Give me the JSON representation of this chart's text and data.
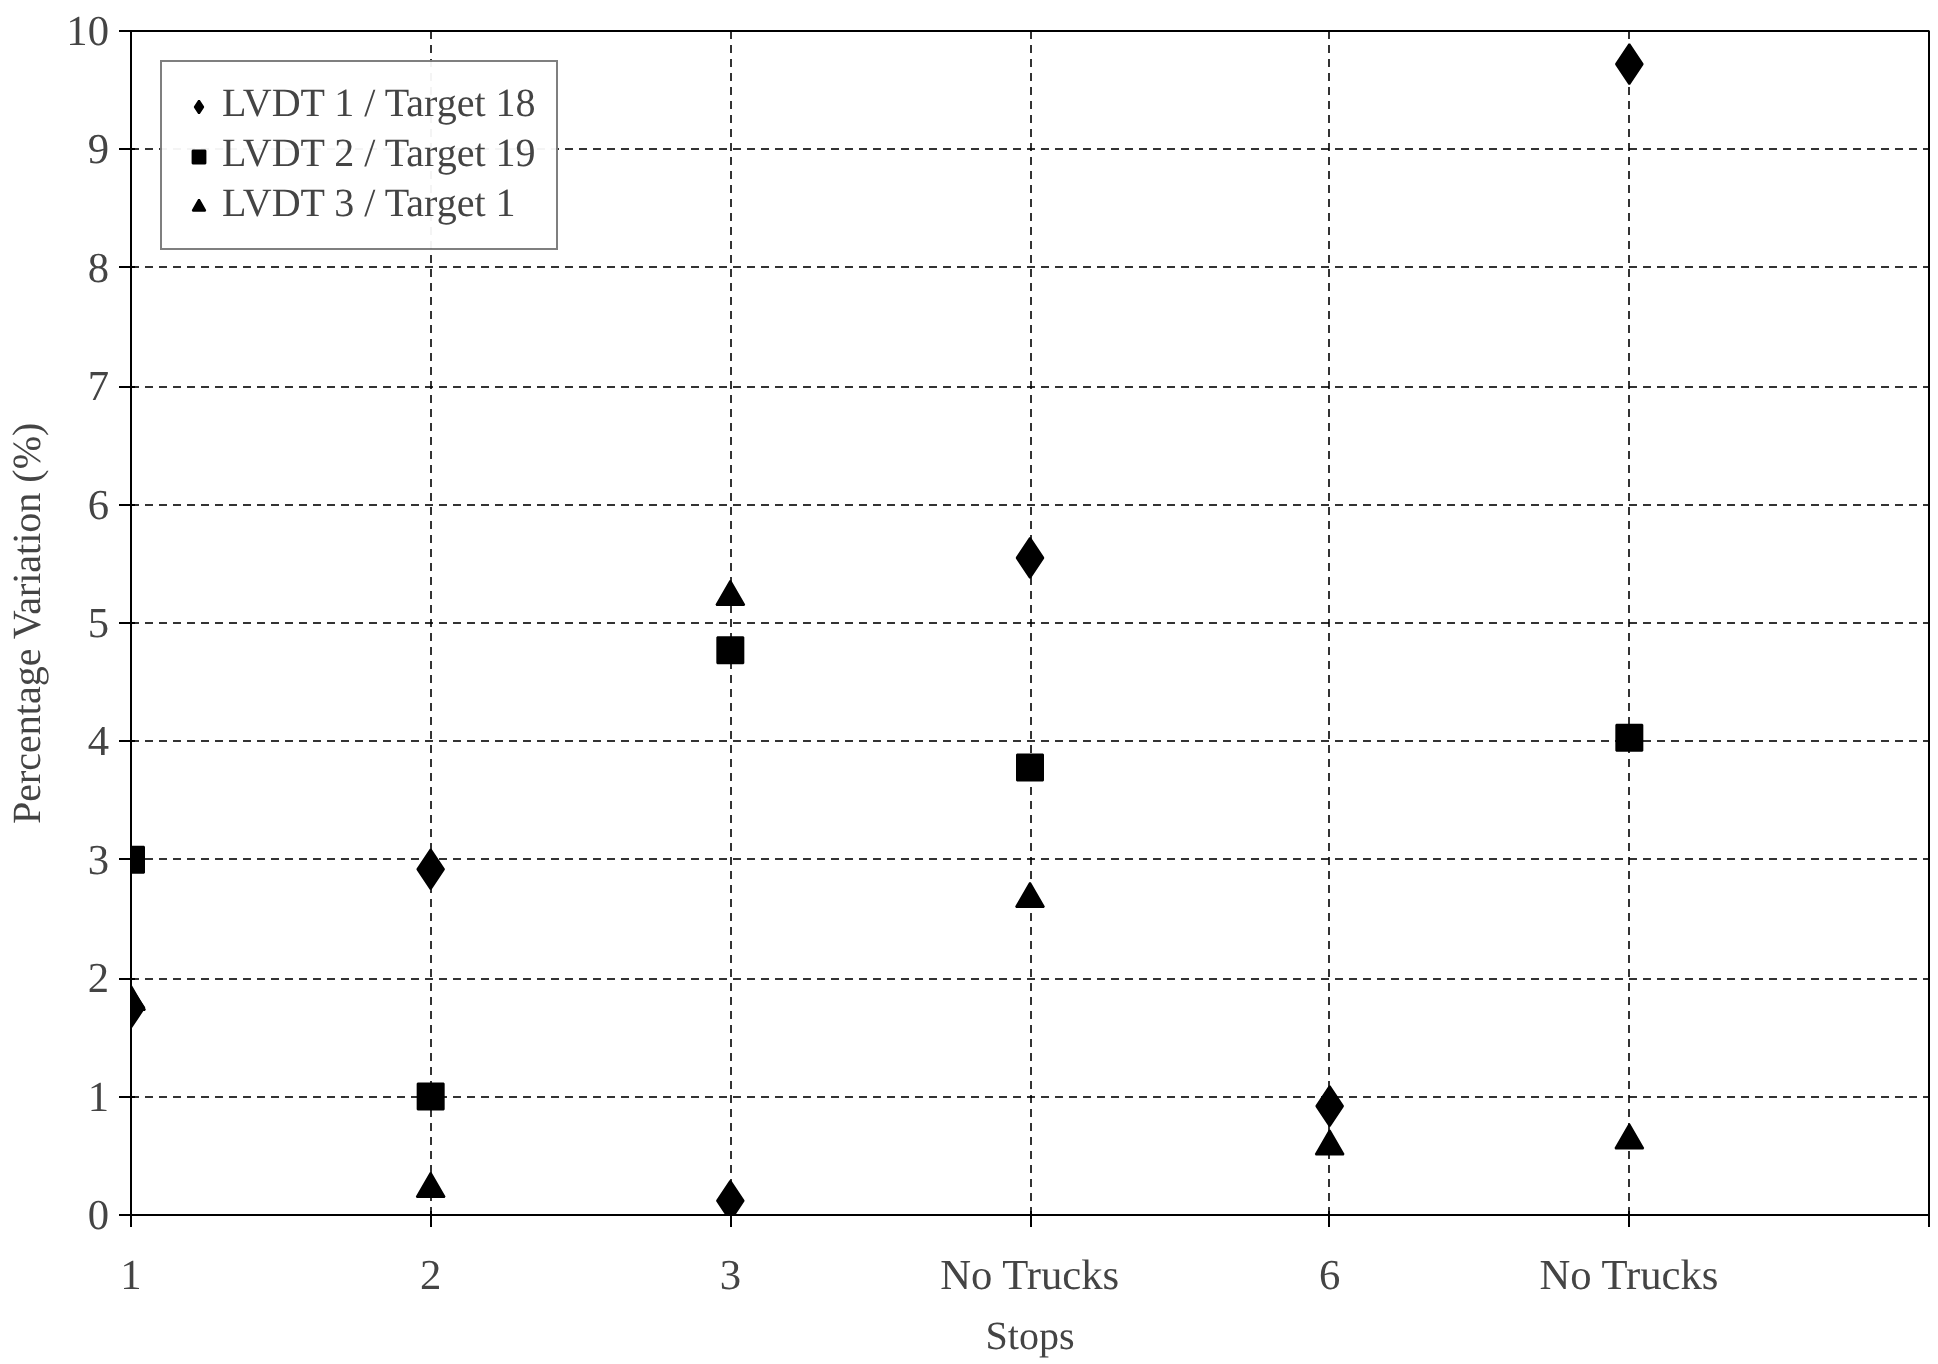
{
  "chart_data": {
    "type": "scatter",
    "xlabel": "Stops",
    "ylabel": "Percentage Variation (%)",
    "categories": [
      "1",
      "2",
      "3",
      "No Trucks",
      "6",
      "No Trucks",
      null
    ],
    "ylim": [
      0,
      10
    ],
    "yticks": [
      0,
      1,
      2,
      3,
      4,
      5,
      6,
      7,
      8,
      9,
      10
    ],
    "grid": true,
    "legend": "top left",
    "series": [
      {
        "name": "LVDT 1 / Target 18",
        "color": "#000000",
        "marker": "diamond",
        "values": [
          1.75,
          2.92,
          0.12,
          5.55,
          0.92,
          9.72,
          null
        ]
      },
      {
        "name": "LVDT 2 / Target 19",
        "color": "#000000",
        "marker": "square",
        "values": [
          3.0,
          1.0,
          4.77,
          3.78,
          null,
          4.03,
          null
        ]
      },
      {
        "name": "LVDT 3 / Target 1",
        "color": "#000000",
        "marker": "triangle",
        "values": [
          1.8,
          0.22,
          5.22,
          2.67,
          0.58,
          0.63,
          null
        ]
      }
    ]
  }
}
